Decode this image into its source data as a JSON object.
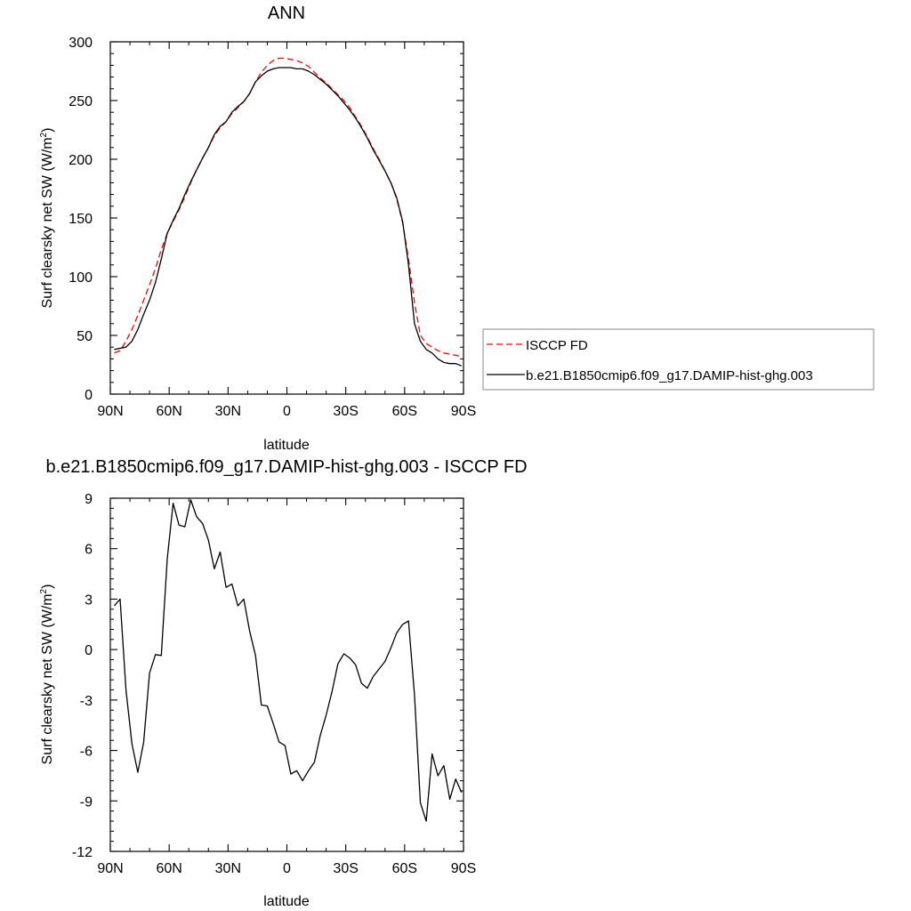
{
  "chart_data": [
    {
      "type": "line",
      "title": "ANN",
      "xlabel": "latitude",
      "ylabel": "Surf clearsky net SW (W/m",
      "ylabel_sup": "2",
      "ylabel_close": ")",
      "xlim": [
        90,
        -90
      ],
      "ylim": [
        0,
        300
      ],
      "x_ticks": [
        90,
        60,
        30,
        0,
        -30,
        -60,
        -90
      ],
      "x_tick_labels": [
        "90N",
        "60N",
        "30N",
        "0",
        "30S",
        "60S",
        "90S"
      ],
      "y_ticks": [
        0,
        50,
        100,
        150,
        200,
        250,
        300
      ],
      "y_tick_labels": [
        "0",
        "50",
        "100",
        "150",
        "200",
        "250",
        "300"
      ],
      "legend_position": "right",
      "series": [
        {
          "name": "ISCCP FD",
          "color": "#ff0000",
          "dash": "dashed",
          "x": [
            88,
            85,
            82,
            79,
            76,
            73,
            70,
            67,
            64,
            61,
            58,
            55,
            52,
            49,
            46,
            43,
            40,
            37,
            34,
            31,
            28,
            25,
            22,
            19,
            16,
            13,
            10,
            7,
            4,
            1,
            -2,
            -5,
            -8,
            -11,
            -14,
            -17,
            -20,
            -23,
            -26,
            -29,
            -32,
            -35,
            -38,
            -41,
            -44,
            -47,
            -50,
            -53,
            -56,
            -59,
            -62,
            -65,
            -68,
            -71,
            -74,
            -77,
            -80,
            -83,
            -86,
            -89
          ],
          "values": [
            35,
            37,
            45,
            55,
            67,
            80,
            93,
            107,
            123,
            137,
            147,
            157,
            168,
            180,
            191,
            201,
            210,
            220,
            227,
            232,
            239,
            244,
            249,
            256,
            266,
            274,
            280,
            284,
            286,
            286,
            285,
            284,
            282,
            279,
            274,
            269,
            265,
            260,
            255,
            250,
            244,
            236,
            228,
            219,
            209,
            200,
            190,
            180,
            166,
            146,
            115,
            78,
            50,
            43,
            40,
            37,
            35,
            34,
            33,
            32
          ]
        },
        {
          "name": "b.e21.B1850cmip6.f09_g17.DAMIP-hist-ghg.003",
          "color": "#000000",
          "dash": "solid",
          "x": [
            88,
            85,
            82,
            79,
            76,
            73,
            70,
            67,
            64,
            61,
            58,
            55,
            52,
            49,
            46,
            43,
            40,
            37,
            34,
            31,
            28,
            25,
            22,
            19,
            16,
            13,
            10,
            7,
            4,
            1,
            -2,
            -5,
            -8,
            -11,
            -14,
            -17,
            -20,
            -23,
            -26,
            -29,
            -32,
            -35,
            -38,
            -41,
            -44,
            -47,
            -50,
            -53,
            -56,
            -59,
            -62,
            -65,
            -68,
            -71,
            -74,
            -77,
            -80,
            -83,
            -86,
            -89
          ],
          "values": [
            38,
            39,
            40,
            45,
            55,
            68,
            80,
            95,
            115,
            137,
            148,
            158,
            170,
            181,
            191,
            201,
            210,
            221,
            228,
            232,
            240,
            245,
            249,
            256,
            266,
            271,
            275,
            277,
            278,
            278,
            278,
            277,
            277,
            275,
            272,
            268,
            264,
            259,
            254,
            248,
            242,
            235,
            227,
            218,
            208,
            199,
            190,
            180,
            167,
            147,
            110,
            60,
            45,
            38,
            35,
            30,
            27,
            26,
            26,
            24
          ]
        }
      ]
    },
    {
      "type": "line",
      "title": "b.e21.B1850cmip6.f09_g17.DAMIP-hist-ghg.003 - ISCCP FD",
      "xlabel": "latitude",
      "ylabel": "Surf clearsky net SW (W/m",
      "ylabel_sup": "2",
      "ylabel_close": ")",
      "xlim": [
        90,
        -90
      ],
      "ylim": [
        -12,
        9
      ],
      "x_ticks": [
        90,
        60,
        30,
        0,
        -30,
        -60,
        -90
      ],
      "x_tick_labels": [
        "90N",
        "60N",
        "30N",
        "0",
        "30S",
        "60S",
        "90S"
      ],
      "y_ticks": [
        -12,
        -9,
        -6,
        -3,
        0,
        3,
        6,
        9
      ],
      "y_tick_labels": [
        "-12",
        "-9",
        "-6",
        "-3",
        "0",
        "3",
        "6",
        "9"
      ],
      "series": [
        {
          "color": "#000000",
          "dash": "solid",
          "x": [
            88,
            85,
            82,
            79,
            76,
            73,
            70,
            67,
            64,
            61,
            58,
            55,
            52,
            49,
            46,
            43,
            40,
            37,
            34,
            31,
            28,
            25,
            22,
            19,
            16,
            13,
            10,
            7,
            4,
            1,
            -2,
            -5,
            -8,
            -11,
            -14,
            -17,
            -20,
            -23,
            -26,
            -29,
            -32,
            -35,
            -38,
            -41,
            -44,
            -47,
            -50,
            -53,
            -56,
            -59,
            -62,
            -65,
            -68,
            -71,
            -74,
            -77,
            -80,
            -83,
            -86,
            -89
          ],
          "values": [
            2.6,
            3.0,
            -2.4,
            -5.6,
            -7.3,
            -5.5,
            -1.4,
            -0.3,
            -0.35,
            5.4,
            8.7,
            7.4,
            7.3,
            8.9,
            7.9,
            7.5,
            6.5,
            4.8,
            5.8,
            3.7,
            3.9,
            2.6,
            3.0,
            1.1,
            -0.35,
            -3.3,
            -3.35,
            -4.4,
            -5.5,
            -5.7,
            -7.4,
            -7.2,
            -7.8,
            -7.2,
            -6.7,
            -5.1,
            -3.9,
            -2.5,
            -0.85,
            -0.25,
            -0.5,
            -0.9,
            -2.0,
            -2.3,
            -1.6,
            -1.15,
            -0.7,
            0.1,
            1.0,
            1.5,
            1.7,
            -2.7,
            -9.1,
            -10.2,
            -6.2,
            -7.5,
            -6.9,
            -8.9,
            -7.7,
            -8.5
          ]
        }
      ]
    }
  ]
}
